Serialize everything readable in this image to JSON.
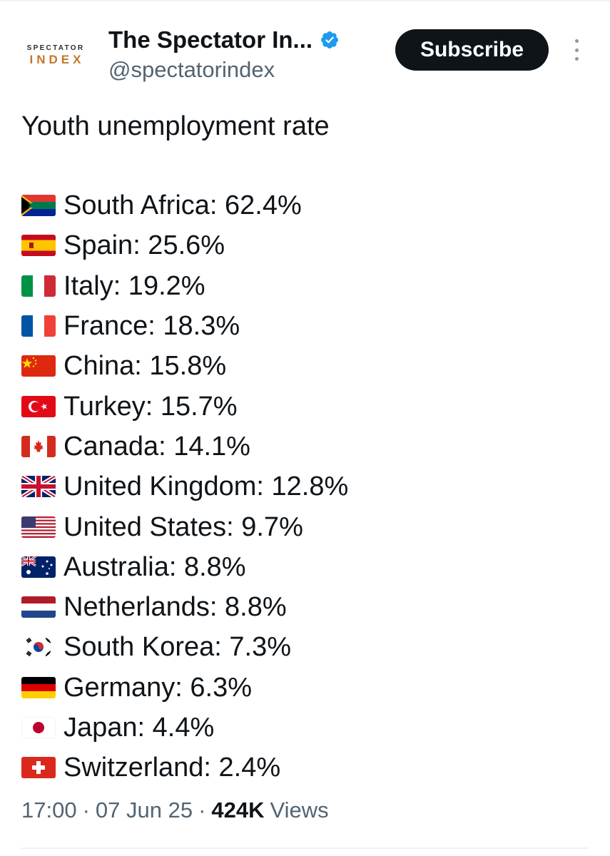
{
  "account": {
    "avatar_line1": "SPECTATOR",
    "avatar_line2": "INDEX",
    "display_name": "The Spectator In...",
    "handle": "@spectatorindex",
    "verified": true,
    "verified_color": "#1d9bf0"
  },
  "actions": {
    "subscribe_label": "Subscribe"
  },
  "tweet": {
    "intro": "Youth unemployment rate",
    "rows": [
      {
        "flag": "south-africa-flag",
        "text": "South Africa: 62.4%"
      },
      {
        "flag": "spain-flag",
        "text": "Spain: 25.6%"
      },
      {
        "flag": "italy-flag",
        "text": "Italy: 19.2%"
      },
      {
        "flag": "france-flag",
        "text": "France: 18.3%"
      },
      {
        "flag": "china-flag",
        "text": "China: 15.8%"
      },
      {
        "flag": "turkey-flag",
        "text": "Turkey: 15.7%"
      },
      {
        "flag": "canada-flag",
        "text": "Canada: 14.1%"
      },
      {
        "flag": "united-kingdom-flag",
        "text": "United Kingdom: 12.8%"
      },
      {
        "flag": "united-states-flag",
        "text": "United States: 9.7%"
      },
      {
        "flag": "australia-flag",
        "text": "Australia: 8.8%"
      },
      {
        "flag": "netherlands-flag",
        "text": "Netherlands: 8.8%"
      },
      {
        "flag": "south-korea-flag",
        "text": "South Korea: 7.3%"
      },
      {
        "flag": "germany-flag",
        "text": "Germany: 6.3%"
      },
      {
        "flag": "japan-flag",
        "text": "Japan: 4.4%"
      },
      {
        "flag": "switzerland-flag",
        "text": "Switzerland: 2.4%"
      }
    ]
  },
  "meta": {
    "time": "17:00",
    "separator": "·",
    "date": "07 Jun 25",
    "views_count": "424K",
    "views_label": "Views"
  }
}
